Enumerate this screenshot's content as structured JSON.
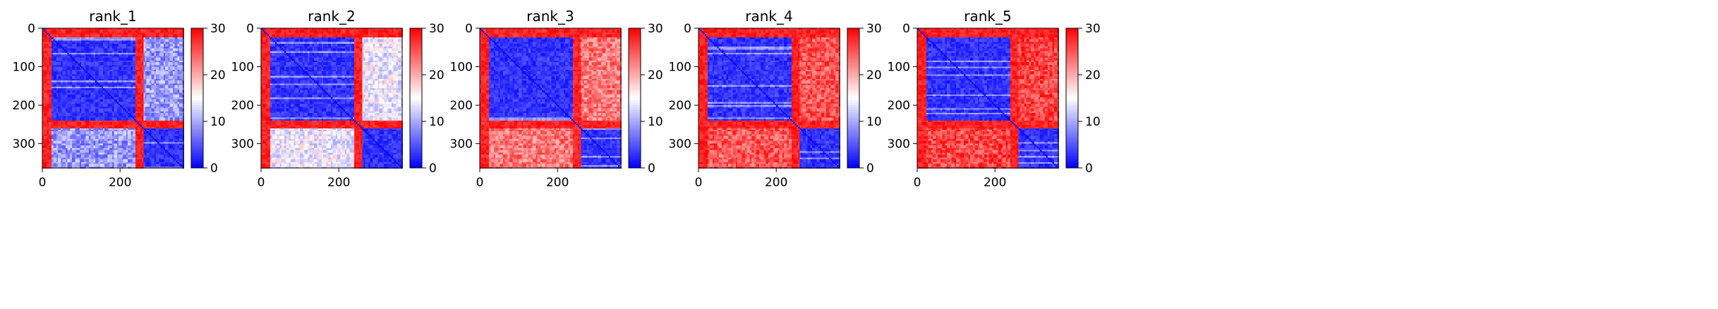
{
  "chart_data": [
    {
      "type": "heatmap",
      "title": "rank_1",
      "xlabel": "",
      "ylabel": "",
      "xlim": [
        0,
        363
      ],
      "ylim": [
        363,
        0
      ],
      "x_ticks": [
        0,
        200
      ],
      "y_ticks": [
        0,
        100,
        200,
        300
      ],
      "grid": false,
      "colormap": "bwr",
      "colorbar": {
        "min": 0,
        "max": 30,
        "ticks": [
          0,
          10,
          20,
          30
        ]
      },
      "domains": [
        {
          "start": 0,
          "end": 25,
          "kind": "disordered"
        },
        {
          "start": 25,
          "end": 240,
          "kind": "domain"
        },
        {
          "start": 240,
          "end": 260,
          "kind": "linker"
        },
        {
          "start": 260,
          "end": 363,
          "kind": "domain"
        }
      ],
      "values_within_domain": 3,
      "values_between_domains": 9,
      "values_disordered": 28
    },
    {
      "type": "heatmap",
      "title": "rank_2",
      "xlabel": "",
      "ylabel": "",
      "xlim": [
        0,
        363
      ],
      "ylim": [
        363,
        0
      ],
      "x_ticks": [
        0,
        200
      ],
      "y_ticks": [
        0,
        100,
        200,
        300
      ],
      "grid": false,
      "colormap": "bwr",
      "colorbar": {
        "min": 0,
        "max": 30,
        "ticks": [
          0,
          10,
          20,
          30
        ]
      },
      "domains": [
        {
          "start": 0,
          "end": 25,
          "kind": "disordered"
        },
        {
          "start": 25,
          "end": 240,
          "kind": "domain"
        },
        {
          "start": 240,
          "end": 260,
          "kind": "linker"
        },
        {
          "start": 260,
          "end": 363,
          "kind": "domain"
        }
      ],
      "values_within_domain": 3,
      "values_between_domains": 14,
      "values_disordered": 28
    },
    {
      "type": "heatmap",
      "title": "rank_3",
      "xlabel": "",
      "ylabel": "",
      "xlim": [
        0,
        363
      ],
      "ylim": [
        363,
        0
      ],
      "x_ticks": [
        0,
        200
      ],
      "y_ticks": [
        0,
        100,
        200,
        300
      ],
      "grid": false,
      "colormap": "bwr",
      "colorbar": {
        "min": 0,
        "max": 30,
        "ticks": [
          0,
          10,
          20,
          30
        ]
      },
      "domains": [
        {
          "start": 0,
          "end": 25,
          "kind": "disordered"
        },
        {
          "start": 25,
          "end": 240,
          "kind": "domain"
        },
        {
          "start": 240,
          "end": 260,
          "kind": "linker"
        },
        {
          "start": 260,
          "end": 363,
          "kind": "domain"
        }
      ],
      "values_within_domain": 3,
      "values_between_domains": 23,
      "values_disordered": 28
    },
    {
      "type": "heatmap",
      "title": "rank_4",
      "xlabel": "",
      "ylabel": "",
      "xlim": [
        0,
        363
      ],
      "ylim": [
        363,
        0
      ],
      "x_ticks": [
        0,
        200
      ],
      "y_ticks": [
        0,
        100,
        200,
        300
      ],
      "grid": false,
      "colormap": "bwr",
      "colorbar": {
        "min": 0,
        "max": 30,
        "ticks": [
          0,
          10,
          20,
          30
        ]
      },
      "domains": [
        {
          "start": 0,
          "end": 25,
          "kind": "disordered"
        },
        {
          "start": 25,
          "end": 240,
          "kind": "domain"
        },
        {
          "start": 240,
          "end": 260,
          "kind": "linker"
        },
        {
          "start": 260,
          "end": 363,
          "kind": "domain"
        }
      ],
      "values_within_domain": 3,
      "values_between_domains": 25,
      "values_disordered": 28
    },
    {
      "type": "heatmap",
      "title": "rank_5",
      "xlabel": "",
      "ylabel": "",
      "xlim": [
        0,
        363
      ],
      "ylim": [
        363,
        0
      ],
      "x_ticks": [
        0,
        200
      ],
      "y_ticks": [
        0,
        100,
        200,
        300
      ],
      "grid": false,
      "colormap": "bwr",
      "colorbar": {
        "min": 0,
        "max": 30,
        "ticks": [
          0,
          10,
          20,
          30
        ]
      },
      "domains": [
        {
          "start": 0,
          "end": 25,
          "kind": "disordered"
        },
        {
          "start": 25,
          "end": 240,
          "kind": "domain"
        },
        {
          "start": 240,
          "end": 260,
          "kind": "linker"
        },
        {
          "start": 260,
          "end": 363,
          "kind": "domain"
        }
      ],
      "values_within_domain": 3,
      "values_between_domains": 26,
      "values_disordered": 28
    }
  ],
  "colors": {
    "low": "#0000ff",
    "mid": "#ffffff",
    "high": "#ff0000"
  }
}
